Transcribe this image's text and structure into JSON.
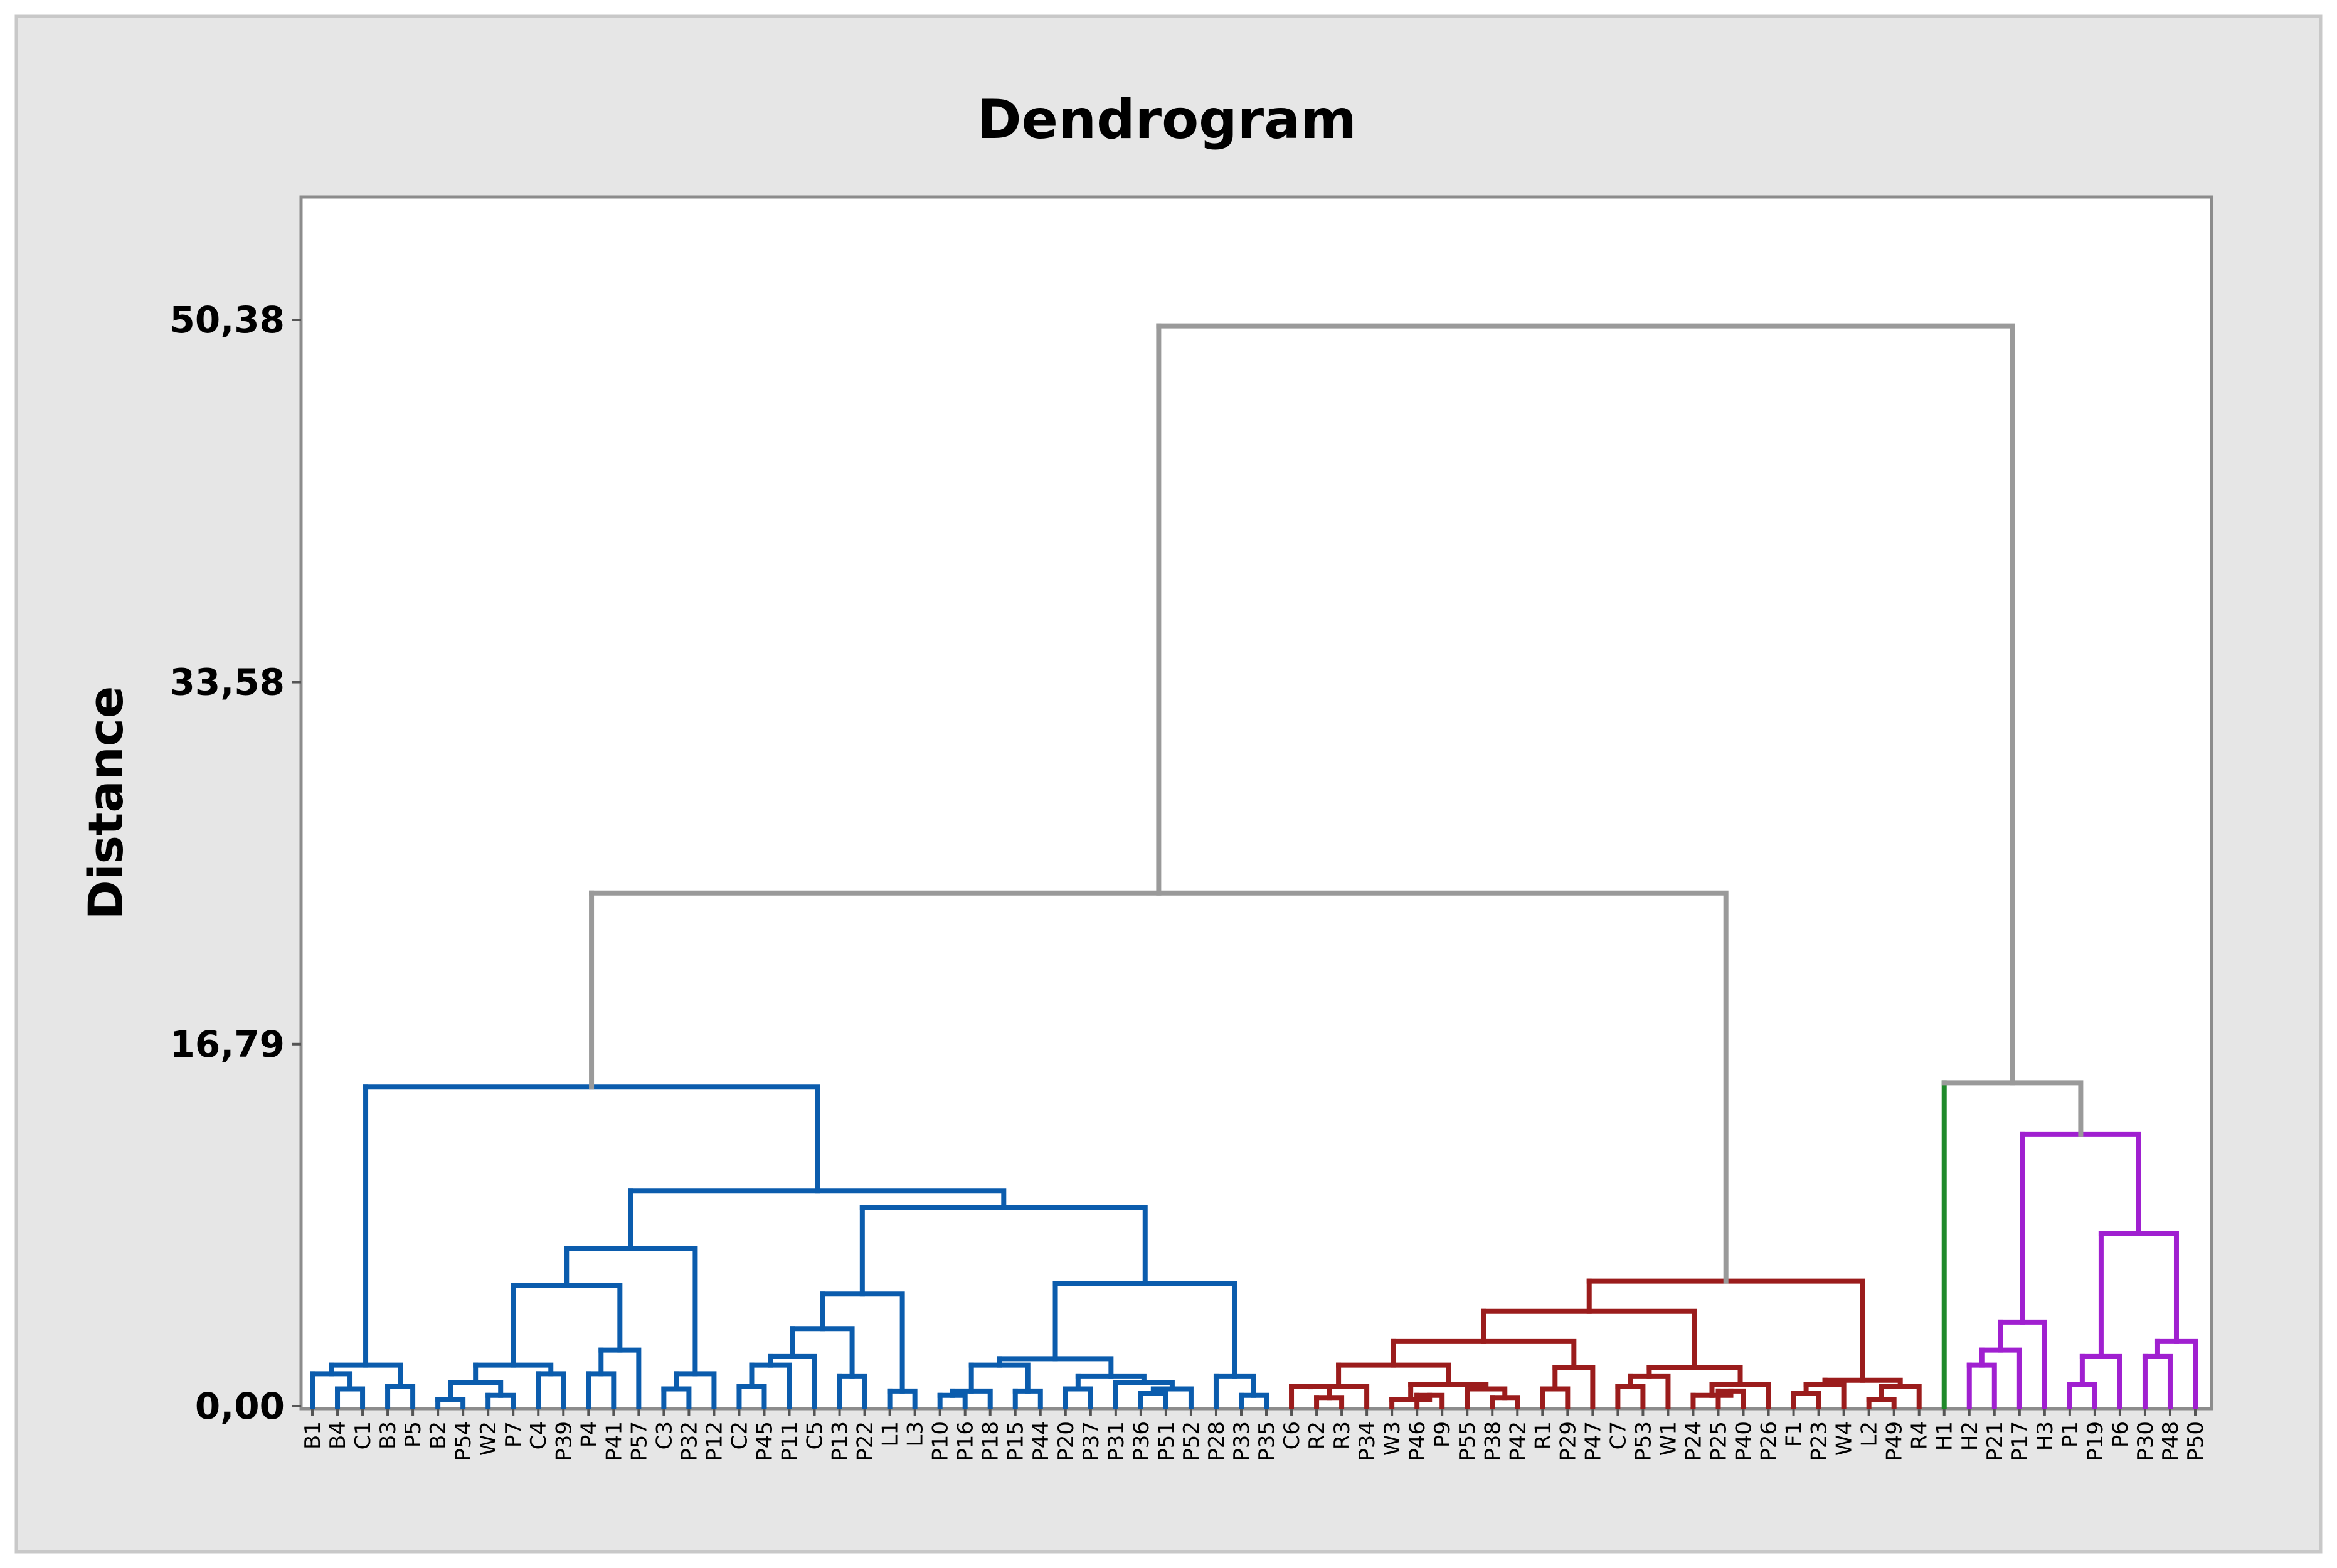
{
  "chart_data": {
    "type": "dendrogram",
    "title": "Dendrogram",
    "xlabel": "",
    "ylabel": "Distance",
    "y_ticks": [
      "0,00",
      "16,79",
      "33,58",
      "50,38"
    ],
    "y_tick_values": [
      0,
      16.79,
      33.58,
      50.38
    ],
    "ylim": [
      0,
      55.8
    ],
    "grid": false,
    "legend": "none",
    "leaves": [
      "B1",
      "B4",
      "C1",
      "B3",
      "P5",
      "B2",
      "P54",
      "W2",
      "P7",
      "C4",
      "P39",
      "P4",
      "P41",
      "P57",
      "C3",
      "P32",
      "P12",
      "C2",
      "P45",
      "P11",
      "C5",
      "P13",
      "P22",
      "L1",
      "L3",
      "P10",
      "P16",
      "P18",
      "P15",
      "P44",
      "P20",
      "P37",
      "P31",
      "P36",
      "P51",
      "P52",
      "P28",
      "P33",
      "P35",
      "C6",
      "R2",
      "R3",
      "P34",
      "W3",
      "P46",
      "P9",
      "P55",
      "P38",
      "P42",
      "R1",
      "P29",
      "P47",
      "C7",
      "P53",
      "W1",
      "P24",
      "P25",
      "P40",
      "P26",
      "F1",
      "P23",
      "W4",
      "L2",
      "P49",
      "R4",
      "H1",
      "H2",
      "P21",
      "P17",
      "H3",
      "P1",
      "P19",
      "P6",
      "P30",
      "P48",
      "P50"
    ],
    "cluster_colors": {
      "blue": "#0b5cad",
      "red": "#9b1c1c",
      "green": "#1f8a2b",
      "purple": "#a020d0",
      "upper": "#9a9a9a"
    },
    "merges": [
      {
        "a": "B4",
        "b": "C1",
        "h": 0.8,
        "c": "blue"
      },
      {
        "a": "B3",
        "b": "P5",
        "h": 0.9,
        "c": "blue"
      },
      {
        "a": "B1",
        "b": 0,
        "h": 1.5,
        "c": "blue"
      },
      {
        "a": 2,
        "b": 1,
        "h": 1.9,
        "c": "blue"
      },
      {
        "a": "B2",
        "b": "P54",
        "h": 0.3,
        "c": "blue"
      },
      {
        "a": "W2",
        "b": "P7",
        "h": 0.5,
        "c": "blue"
      },
      {
        "a": 4,
        "b": 5,
        "h": 1.1,
        "c": "blue"
      },
      {
        "a": "C4",
        "b": "P39",
        "h": 1.5,
        "c": "blue"
      },
      {
        "a": 6,
        "b": 7,
        "h": 1.9,
        "c": "blue"
      },
      {
        "a": "P4",
        "b": "P41",
        "h": 1.5,
        "c": "blue"
      },
      {
        "a": 9,
        "b": "P57",
        "h": 2.6,
        "c": "blue"
      },
      {
        "a": 8,
        "b": 10,
        "h": 5.6,
        "c": "blue"
      },
      {
        "a": "C3",
        "b": "P32",
        "h": 0.8,
        "c": "blue"
      },
      {
        "a": 12,
        "b": "P12",
        "h": 1.5,
        "c": "blue"
      },
      {
        "a": 11,
        "b": 13,
        "h": 7.3,
        "c": "blue"
      },
      {
        "a": "C2",
        "b": "P45",
        "h": 0.9,
        "c": "blue"
      },
      {
        "a": 15,
        "b": "P11",
        "h": 1.9,
        "c": "blue"
      },
      {
        "a": 16,
        "b": "C5",
        "h": 2.3,
        "c": "blue"
      },
      {
        "a": "P13",
        "b": "P22",
        "h": 1.4,
        "c": "blue"
      },
      {
        "a": 17,
        "b": 18,
        "h": 3.6,
        "c": "blue"
      },
      {
        "a": "L1",
        "b": "L3",
        "h": 0.7,
        "c": "blue"
      },
      {
        "a": 19,
        "b": 20,
        "h": 5.2,
        "c": "blue"
      },
      {
        "a": "P10",
        "b": "P16",
        "h": 0.5,
        "c": "blue"
      },
      {
        "a": 22,
        "b": "P18",
        "h": 0.7,
        "c": "blue"
      },
      {
        "a": "P15",
        "b": "P44",
        "h": 0.7,
        "c": "blue"
      },
      {
        "a": 23,
        "b": 24,
        "h": 1.9,
        "c": "blue"
      },
      {
        "a": "P20",
        "b": "P37",
        "h": 0.8,
        "c": "blue"
      },
      {
        "a": "P36",
        "b": "P51",
        "h": 0.6,
        "c": "blue"
      },
      {
        "a": 27,
        "b": "P52",
        "h": 0.8,
        "c": "blue"
      },
      {
        "a": "P31",
        "b": 28,
        "h": 1.1,
        "c": "blue"
      },
      {
        "a": 26,
        "b": 29,
        "h": 1.4,
        "c": "blue"
      },
      {
        "a": 25,
        "b": 30,
        "h": 2.2,
        "c": "blue"
      },
      {
        "a": "P33",
        "b": "P35",
        "h": 0.5,
        "c": "blue"
      },
      {
        "a": "P28",
        "b": 32,
        "h": 1.4,
        "c": "blue"
      },
      {
        "a": 31,
        "b": 33,
        "h": 5.7,
        "c": "blue"
      },
      {
        "a": 21,
        "b": 34,
        "h": 9.2,
        "c": "blue"
      },
      {
        "a": 14,
        "b": 35,
        "h": 10.0,
        "c": "blue"
      },
      {
        "a": 3,
        "b": 36,
        "h": 14.8,
        "c": "blue"
      },
      {
        "a": "R2",
        "b": "R3",
        "h": 0.4,
        "c": "red"
      },
      {
        "a": "C6",
        "b": 38,
        "h": 0.9,
        "c": "red"
      },
      {
        "a": 39,
        "b": "P34",
        "h": 0.9,
        "c": "red"
      },
      {
        "a": "P46",
        "b": "P9",
        "h": 0.5,
        "c": "red"
      },
      {
        "a": "W3",
        "b": 41,
        "h": 0.3,
        "c": "red"
      },
      {
        "a": "P38",
        "b": "P42",
        "h": 0.4,
        "c": "red"
      },
      {
        "a": "P55",
        "b": 43,
        "h": 0.8,
        "c": "red"
      },
      {
        "a": 42,
        "b": 44,
        "h": 1.0,
        "c": "red"
      },
      {
        "a": 40,
        "b": 45,
        "h": 1.9,
        "c": "red"
      },
      {
        "a": "R1",
        "b": "P29",
        "h": 0.8,
        "c": "red"
      },
      {
        "a": 47,
        "b": "P47",
        "h": 1.8,
        "c": "red"
      },
      {
        "a": 46,
        "b": 48,
        "h": 3.0,
        "c": "red"
      },
      {
        "a": "C7",
        "b": "P53",
        "h": 0.9,
        "c": "red"
      },
      {
        "a": 50,
        "b": "W1",
        "h": 1.4,
        "c": "red"
      },
      {
        "a": "P25",
        "b": "P40",
        "h": 0.7,
        "c": "red"
      },
      {
        "a": "P24",
        "b": 52,
        "h": 0.5,
        "c": "red"
      },
      {
        "a": 53,
        "b": "P26",
        "h": 1.0,
        "c": "red"
      },
      {
        "a": 51,
        "b": 54,
        "h": 1.8,
        "c": "red"
      },
      {
        "a": 49,
        "b": 55,
        "h": 4.4,
        "c": "red"
      },
      {
        "a": "F1",
        "b": "P23",
        "h": 0.6,
        "c": "red"
      },
      {
        "a": 57,
        "b": "W4",
        "h": 1.0,
        "c": "red"
      },
      {
        "a": "L2",
        "b": "P49",
        "h": 0.3,
        "c": "red"
      },
      {
        "a": 59,
        "b": "R4",
        "h": 0.9,
        "c": "red"
      },
      {
        "a": 58,
        "b": 60,
        "h": 1.2,
        "c": "red"
      },
      {
        "a": 56,
        "b": 61,
        "h": 5.8,
        "c": "red"
      },
      {
        "a": "H2",
        "b": "P21",
        "h": 1.9,
        "c": "purple"
      },
      {
        "a": 63,
        "b": "P17",
        "h": 2.6,
        "c": "purple"
      },
      {
        "a": 64,
        "b": "H3",
        "h": 3.9,
        "c": "purple"
      },
      {
        "a": "P1",
        "b": "P19",
        "h": 1.0,
        "c": "purple"
      },
      {
        "a": 66,
        "b": "P6",
        "h": 2.3,
        "c": "purple"
      },
      {
        "a": "P30",
        "b": "P48",
        "h": 2.3,
        "c": "purple"
      },
      {
        "a": 68,
        "b": "P50",
        "h": 3.0,
        "c": "purple"
      },
      {
        "a": 67,
        "b": 69,
        "h": 8.0,
        "c": "purple"
      },
      {
        "a": 65,
        "b": 70,
        "h": 12.6,
        "c": "purple"
      },
      {
        "a": "H1",
        "b": 71,
        "h": 15.0,
        "c": "green",
        "upper": true
      },
      {
        "a": 37,
        "b": 62,
        "h": 23.8,
        "c": "upper"
      },
      {
        "a": 73,
        "b": 72,
        "h": 50.1,
        "c": "upper"
      }
    ]
  }
}
